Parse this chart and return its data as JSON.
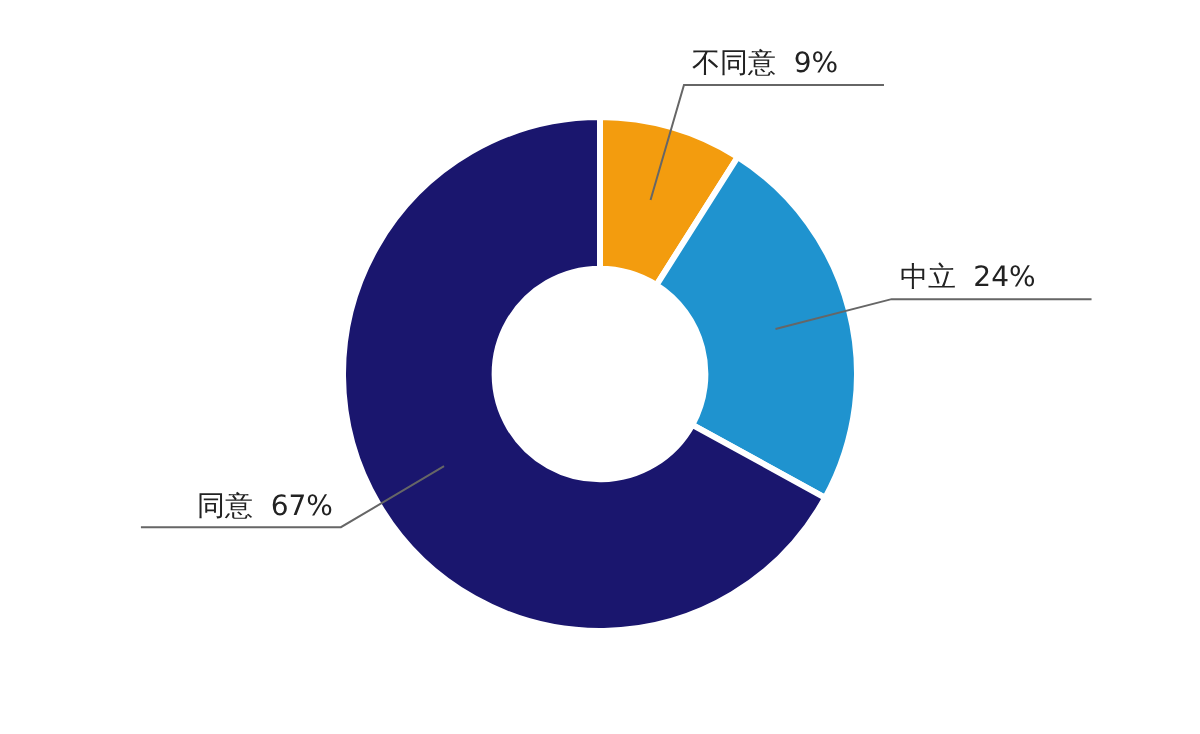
{
  "chart_data": {
    "type": "donut",
    "categories": [
      "不同意",
      "中立",
      "同意"
    ],
    "values": [
      9,
      24,
      67
    ],
    "value_labels": [
      "9%",
      "24%",
      "67%"
    ],
    "colors": [
      "#f39c0e",
      "#1f93cf",
      "#1a166e"
    ],
    "legend": false
  }
}
